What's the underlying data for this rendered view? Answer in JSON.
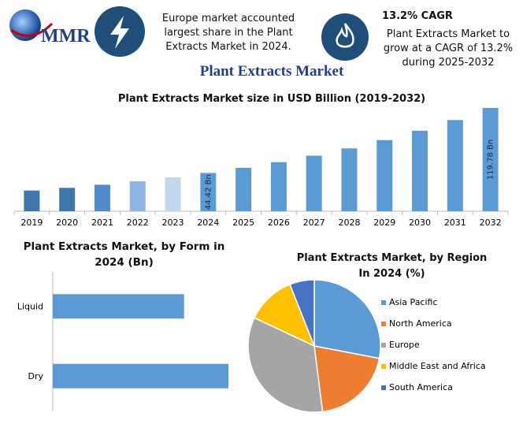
{
  "header": {
    "logo": "MMR",
    "info_left": "Europe market accounted largest share in the Plant Extracts Market in 2024.",
    "cagr_title": "13.2% CAGR",
    "info_right": "Plant Extracts Market to grow at a CAGR of 13.2% during 2025-2032",
    "title": "Plant Extracts Market"
  },
  "chart_data": [
    {
      "type": "bar",
      "title": "Plant Extracts Market size in USD Billion (2019-2032)",
      "categories": [
        "2019",
        "2020",
        "2021",
        "2022",
        "2023",
        "2024",
        "2025",
        "2026",
        "2027",
        "2028",
        "2029",
        "2030",
        "2031",
        "2032"
      ],
      "values": [
        24,
        27.1,
        30.7,
        34.7,
        39.3,
        44.42,
        50.3,
        56.9,
        64.4,
        72.9,
        82.5,
        93.4,
        105.8,
        119.78
      ],
      "value_labels": [
        null,
        null,
        null,
        null,
        null,
        "44.42 Bn",
        null,
        null,
        null,
        null,
        null,
        null,
        null,
        "119.78 Bn"
      ],
      "colors": [
        "#3f78ad",
        "#3f78ad",
        "#4f8cc9",
        "#8db4e2",
        "#c2d6ee",
        "#5b9bd5",
        "#5b9bd5",
        "#5b9bd5",
        "#5b9bd5",
        "#5b9bd5",
        "#5b9bd5",
        "#5b9bd5",
        "#5b9bd5",
        "#5b9bd5"
      ]
    },
    {
      "type": "hbar",
      "title": "Plant Extracts Market, by Form in 2024 (Bn)",
      "categories": [
        "Liquid",
        "Dry"
      ],
      "values": [
        19,
        25.42
      ],
      "color": "#5b9bd5"
    },
    {
      "type": "pie",
      "title": "Plant Extracts Market, by Region In 2024 (%)",
      "categories": [
        "Asia Pacific",
        "North America",
        "Europe",
        "Middle East and Africa",
        "South America"
      ],
      "values": [
        28,
        20,
        34,
        12,
        6
      ],
      "colors": [
        "#5b9bd5",
        "#ed7d31",
        "#a5a5a5",
        "#ffc000",
        "#4472c4"
      ],
      "legend": "right"
    }
  ]
}
